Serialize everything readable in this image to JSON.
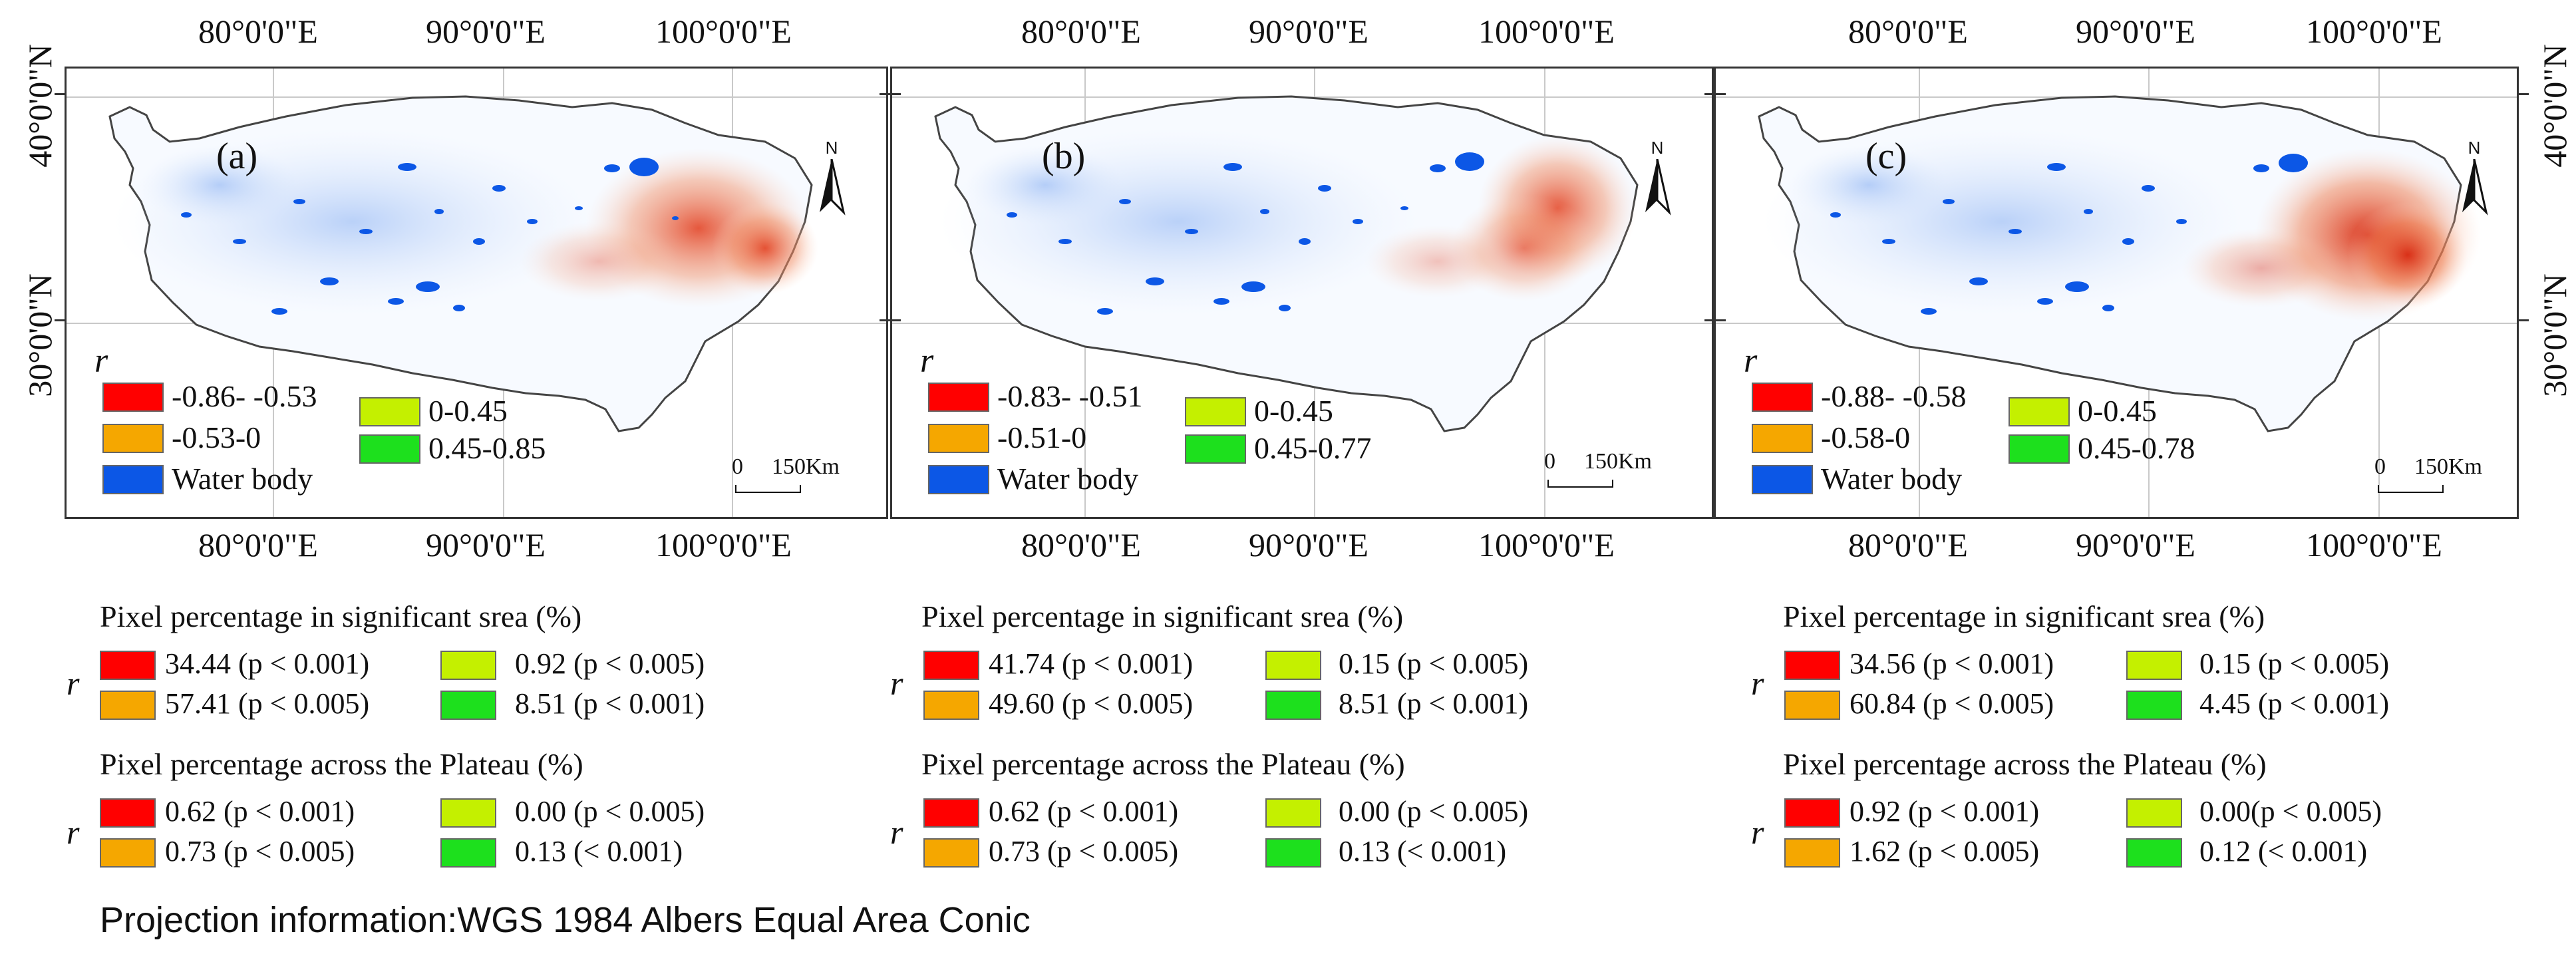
{
  "map": {
    "top_axis_labels": [
      "80°0'0\"E",
      "90°0'0\"E",
      "100°0'0\"E"
    ],
    "bottom_axis_labels": [
      "80°0'0\"E",
      "90°0'0\"E",
      "100°0'0\"E"
    ],
    "left_axis_labels": [
      "40°0'0\"N",
      "30°0'0\"N"
    ],
    "right_axis_labels": [
      "40°0'0\"N",
      "30°0'0\"N"
    ],
    "north_arrow_letter": "N",
    "legend_title": "r",
    "scale_bar": {
      "zero": "0",
      "distance": "150Km"
    },
    "colors": {
      "strong_negative": "#ff0000",
      "weak_negative": "#f5a700",
      "weak_positive": "#c4f000",
      "strong_positive": "#1de01d",
      "water_body": "#0c57e6"
    }
  },
  "panels": [
    {
      "label": "(a)",
      "legend": {
        "neg_strong": "-0.86- -0.53",
        "neg_weak": "-0.53-0",
        "water": "Water body",
        "pos_weak": "0-0.45",
        "pos_strong": "0.45-0.85"
      },
      "sig_title": "Pixel percentage in significant srea (%)",
      "sig": {
        "red": "34.44 (p < 0.001)",
        "orange": "57.41 (p < 0.005)",
        "yellow": "0.92 (p < 0.005)",
        "green": "8.51 (p < 0.001)"
      },
      "plat_title": "Pixel percentage across the Plateau (%)",
      "plat": {
        "red": "0.62 (p < 0.001)",
        "orange": "0.73 (p < 0.005)",
        "yellow": "0.00 (p < 0.005)",
        "green": "0.13 (< 0.001)"
      }
    },
    {
      "label": "(b)",
      "legend": {
        "neg_strong": "-0.83- -0.51",
        "neg_weak": "-0.51-0",
        "water": "Water body",
        "pos_weak": "0-0.45",
        "pos_strong": "0.45-0.77"
      },
      "sig_title": "Pixel percentage in significant srea (%)",
      "sig": {
        "red": "41.74 (p < 0.001)",
        "orange": "49.60 (p < 0.005)",
        "yellow": "0.15 (p < 0.005)",
        "green": "8.51 (p < 0.001)"
      },
      "plat_title": "Pixel percentage across the Plateau (%)",
      "plat": {
        "red": "0.62 (p < 0.001)",
        "orange": "0.73 (p < 0.005)",
        "yellow": "0.00 (p < 0.005)",
        "green": "0.13 (< 0.001)"
      }
    },
    {
      "label": "(c)",
      "legend": {
        "neg_strong": "-0.88- -0.58",
        "neg_weak": "-0.58-0",
        "water": "Water body",
        "pos_weak": "0-0.45",
        "pos_strong": "0.45-0.78"
      },
      "sig_title": "Pixel percentage in significant srea (%)",
      "sig": {
        "red": "34.56 (p < 0.001)",
        "orange": "60.84 (p < 0.005)",
        "yellow": "0.15 (p < 0.005)",
        "green": "4.45 (p < 0.001)"
      },
      "plat_title": "Pixel percentage across the Plateau (%)",
      "plat": {
        "red": "0.92 (p < 0.001)",
        "orange": "1.62 (p < 0.005)",
        "yellow": "0.00(p < 0.005)",
        "green": "0.12 (< 0.001)"
      }
    }
  ],
  "footer": "Projection information:WGS 1984 Albers Equal Area Conic"
}
